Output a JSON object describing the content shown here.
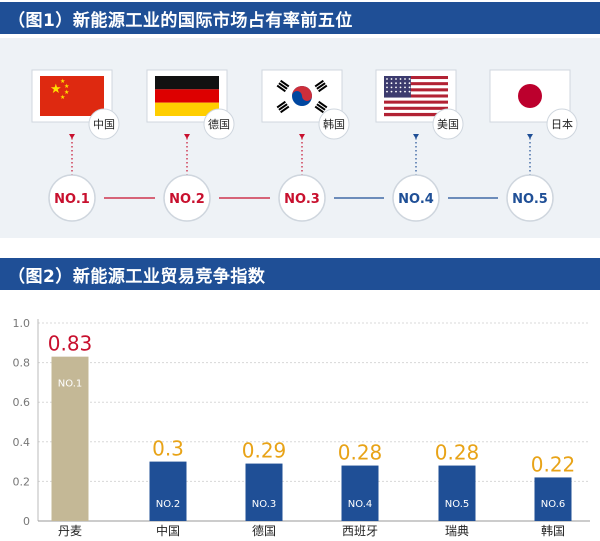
{
  "section1": {
    "title": "（图1）新能源工业的国际市场占有率前五位",
    "ranks": [
      {
        "rank": "NO.1",
        "country": "中国",
        "flag": "china-flag",
        "color": "#c8102e"
      },
      {
        "rank": "NO.2",
        "country": "德国",
        "flag": "germany-flag",
        "color": "#c8102e"
      },
      {
        "rank": "NO.3",
        "country": "韩国",
        "flag": "korea-flag",
        "color": "#c8102e"
      },
      {
        "rank": "NO.4",
        "country": "美国",
        "flag": "usa-flag",
        "color": "#1f4f96"
      },
      {
        "rank": "NO.5",
        "country": "日本",
        "flag": "japan-flag",
        "color": "#1f4f96"
      }
    ]
  },
  "section2": {
    "title": "（图2）新能源工业贸易竞争指数"
  },
  "chart_data": {
    "type": "bar",
    "title": "",
    "categories": [
      "丹麦",
      "中国",
      "德国",
      "西班牙",
      "瑞典",
      "韩国"
    ],
    "values": [
      0.83,
      0.3,
      0.29,
      0.28,
      0.28,
      0.22
    ],
    "value_labels": [
      "0.83",
      "0.3",
      "0.29",
      "0.28",
      "0.28",
      "0.22"
    ],
    "bar_labels": [
      "NO.1",
      "NO.2",
      "NO.3",
      "NO.4",
      "NO.5",
      "NO.6"
    ],
    "ylim": [
      0,
      1.0
    ],
    "yticks": [
      "0",
      "0.2",
      "0.4",
      "0.6",
      "0.8",
      "1.0"
    ],
    "grid": true,
    "colors": {
      "first_bar": "#c4b896",
      "other_bars": "#1f4f96",
      "first_value_label": "#c8102e",
      "other_value_labels": "#e8a317"
    }
  }
}
